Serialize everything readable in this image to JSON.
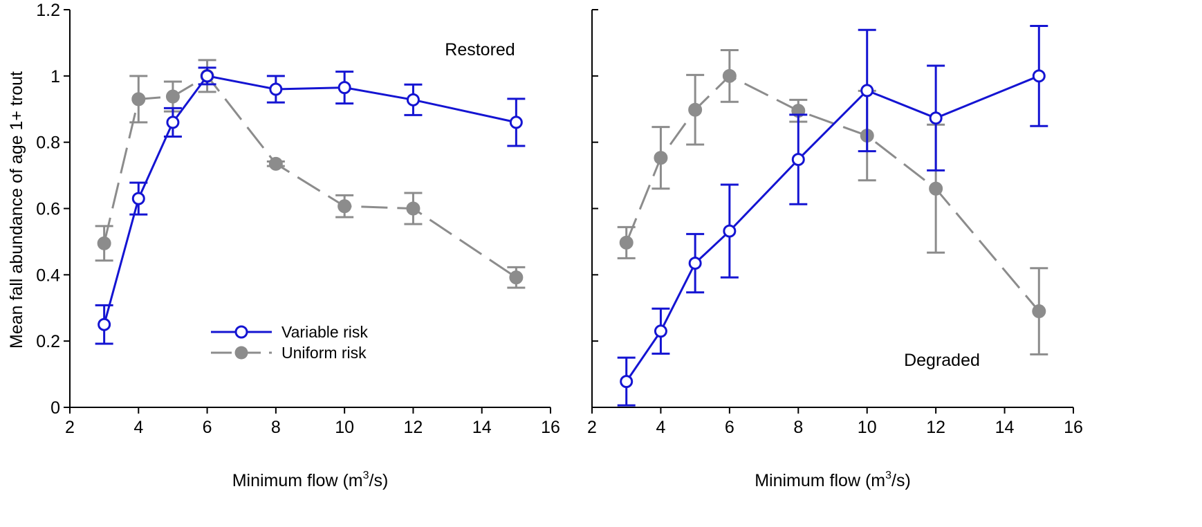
{
  "chart_data": [
    {
      "type": "line",
      "panel": "left",
      "annotation": "Restored",
      "ylabel": "Mean fall abundance of age 1+ trout",
      "xlabel": {
        "main": "Minimum flow (m",
        "sup": "3",
        "tail": "/s)"
      },
      "xlim": [
        2,
        16
      ],
      "ylim": [
        0,
        1.2
      ],
      "xticks": [
        2,
        4,
        6,
        8,
        10,
        12,
        14,
        16
      ],
      "yticks": [
        0,
        0.2,
        0.4,
        0.6,
        0.8,
        1.0,
        1.2
      ],
      "xtick_labels": [
        "2",
        "4",
        "6",
        "8",
        "10",
        "12",
        "14",
        "16"
      ],
      "ytick_labels": [
        "0",
        "0.2",
        "0.4",
        "0.6",
        "0.8",
        "1",
        "1.2"
      ],
      "legend": {
        "position": "lower-left",
        "entries": [
          "Variable risk",
          "Uniform risk"
        ]
      },
      "series": [
        {
          "name": "Variable risk",
          "color": "#1414d2",
          "style": "solid",
          "marker": "open-circle",
          "x": [
            3,
            4,
            5,
            6,
            8,
            10,
            12,
            15
          ],
          "y": [
            0.25,
            0.63,
            0.86,
            1.0,
            0.96,
            0.965,
            0.928,
            0.86
          ],
          "err": [
            0.058,
            0.048,
            0.043,
            0.025,
            0.04,
            0.048,
            0.046,
            0.071
          ]
        },
        {
          "name": "Uniform risk",
          "color": "#8c8c8c",
          "style": "dashed",
          "marker": "filled-circle",
          "x": [
            3,
            4,
            5,
            6,
            8,
            10,
            12,
            15
          ],
          "y": [
            0.495,
            0.93,
            0.938,
            1.0,
            0.735,
            0.607,
            0.6,
            0.392
          ],
          "err": [
            0.052,
            0.07,
            0.045,
            0.048,
            0.007,
            0.033,
            0.047,
            0.031
          ]
        }
      ]
    },
    {
      "type": "line",
      "panel": "right",
      "annotation": "Degraded",
      "xlabel": {
        "main": "Minimum flow (m",
        "sup": "3",
        "tail": "/s)"
      },
      "xlim": [
        2,
        16
      ],
      "ylim": [
        0,
        1.2
      ],
      "xticks": [
        2,
        4,
        6,
        8,
        10,
        12,
        14,
        16
      ],
      "yticks": [
        0,
        0.2,
        0.4,
        0.6,
        0.8,
        1.0,
        1.2
      ],
      "xtick_labels": [
        "2",
        "4",
        "6",
        "8",
        "10",
        "12",
        "14",
        "16"
      ],
      "series": [
        {
          "name": "Variable risk",
          "color": "#1414d2",
          "style": "solid",
          "marker": "open-circle",
          "x": [
            3,
            4,
            5,
            6,
            8,
            10,
            12,
            15
          ],
          "y": [
            0.078,
            0.23,
            0.435,
            0.532,
            0.748,
            0.956,
            0.873,
            1.0
          ],
          "err": [
            0.072,
            0.068,
            0.088,
            0.14,
            0.135,
            0.183,
            0.158,
            0.151
          ]
        },
        {
          "name": "Uniform risk",
          "color": "#8c8c8c",
          "style": "dashed",
          "marker": "filled-circle",
          "x": [
            3,
            4,
            5,
            6,
            8,
            10,
            12,
            15
          ],
          "y": [
            0.497,
            0.753,
            0.898,
            1.0,
            0.895,
            0.82,
            0.66,
            0.29
          ],
          "err": [
            0.047,
            0.093,
            0.105,
            0.078,
            0.033,
            0.135,
            0.193,
            0.13
          ]
        }
      ]
    }
  ]
}
